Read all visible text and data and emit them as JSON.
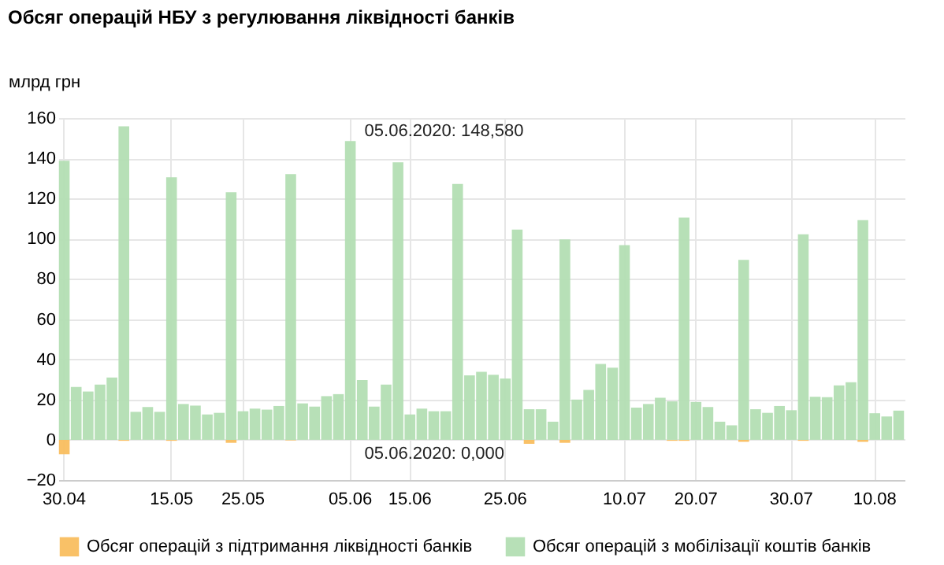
{
  "chart_data": {
    "type": "bar",
    "title": "Обсяг операцій НБУ з регулювання ліквідності банків",
    "ylabel": "млрд грн",
    "categories": [
      "30.04",
      null,
      null,
      null,
      null,
      null,
      null,
      null,
      null,
      "15.05",
      null,
      null,
      null,
      null,
      null,
      "25.05",
      null,
      null,
      null,
      null,
      null,
      null,
      null,
      null,
      "05.06",
      null,
      null,
      null,
      null,
      "15.06",
      null,
      null,
      null,
      null,
      null,
      null,
      null,
      "25.06",
      null,
      null,
      null,
      null,
      null,
      null,
      null,
      null,
      null,
      "10.07",
      null,
      null,
      null,
      null,
      null,
      "20.07",
      null,
      null,
      null,
      null,
      null,
      null,
      null,
      "30.07",
      null,
      null,
      null,
      null,
      null,
      null,
      "10.08",
      null,
      null
    ],
    "series": [
      {
        "name": "Обсяг операцій з підтримання ліквідності банків",
        "color": "#f9be5f",
        "values": [
          -7.2,
          0,
          0,
          0,
          0,
          -0.5,
          0,
          0,
          0,
          -0.5,
          0,
          0,
          0,
          0,
          -1.5,
          0,
          0,
          0,
          0,
          -0.3,
          0,
          0,
          0,
          0,
          0,
          0,
          0,
          0,
          0,
          0,
          0,
          0,
          0,
          0,
          0,
          0,
          0,
          0,
          0,
          -2,
          0,
          0,
          -1.5,
          0,
          0,
          0,
          0,
          0,
          0,
          0,
          0,
          -0.5,
          -0.5,
          0,
          0,
          0,
          0,
          -1,
          0,
          0,
          0,
          0,
          -0.5,
          0,
          0,
          0,
          0,
          -1,
          0,
          0,
          0
        ]
      },
      {
        "name": "Обсяг операцій з мобілізації коштів банків",
        "color": "#b3deb3",
        "values": [
          138.8,
          26.3,
          24,
          27.4,
          31,
          155.9,
          13.9,
          16.3,
          13.9,
          130.6,
          17.8,
          17,
          12.6,
          13.4,
          123.1,
          14.2,
          15.5,
          15,
          16.8,
          132.1,
          18.1,
          16.5,
          21.7,
          22.7,
          148.58,
          29.7,
          16.5,
          27.4,
          138,
          12.6,
          15.5,
          14.2,
          14.2,
          127.2,
          32,
          33.8,
          32.3,
          30.5,
          104.5,
          15.2,
          15.2,
          9,
          99.6,
          20,
          24.8,
          37.7,
          35.9,
          96.8,
          16,
          17.8,
          20.9,
          19.1,
          110.5,
          18.8,
          16.3,
          9,
          7.2,
          89.5,
          15.2,
          13.4,
          16.8,
          14.7,
          102.2,
          21.4,
          21.2,
          27.1,
          28.6,
          109.2,
          13.2,
          11.6,
          14.5
        ]
      }
    ],
    "ylim": [
      -20,
      160
    ],
    "yticks": [
      -20,
      0,
      20,
      40,
      60,
      80,
      100,
      120,
      140,
      160
    ],
    "grid": true,
    "legend": "bottom",
    "annotations": [
      {
        "text": "05.06.2020: 148,580",
        "x": "05.06",
        "y": 148.58
      },
      {
        "text": "05.06.2020: 0,000",
        "x": "05.06",
        "y": 0
      }
    ]
  }
}
